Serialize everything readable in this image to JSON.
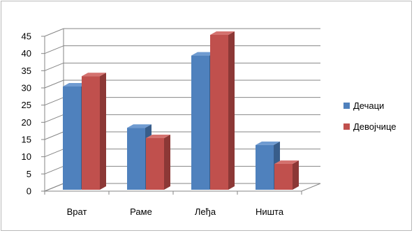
{
  "chart_data": {
    "type": "bar",
    "categories": [
      "Врат",
      "Раме",
      "Леђа",
      "Ништа"
    ],
    "series": [
      {
        "name": "Дечаци",
        "values": [
          30,
          18,
          39,
          13
        ],
        "color": "#4f81bd",
        "side": "#385d8a",
        "top": "#6f9bd1"
      },
      {
        "name": "Девојчице",
        "values": [
          33,
          15,
          45,
          7.5
        ],
        "color": "#c0504d",
        "side": "#8c3836",
        "top": "#d4726f"
      }
    ],
    "ylim": [
      0,
      45
    ],
    "yticks": [
      0,
      5,
      10,
      15,
      20,
      25,
      30,
      35,
      40,
      45
    ],
    "legend_position": "right",
    "grid": true,
    "three_d": true
  }
}
